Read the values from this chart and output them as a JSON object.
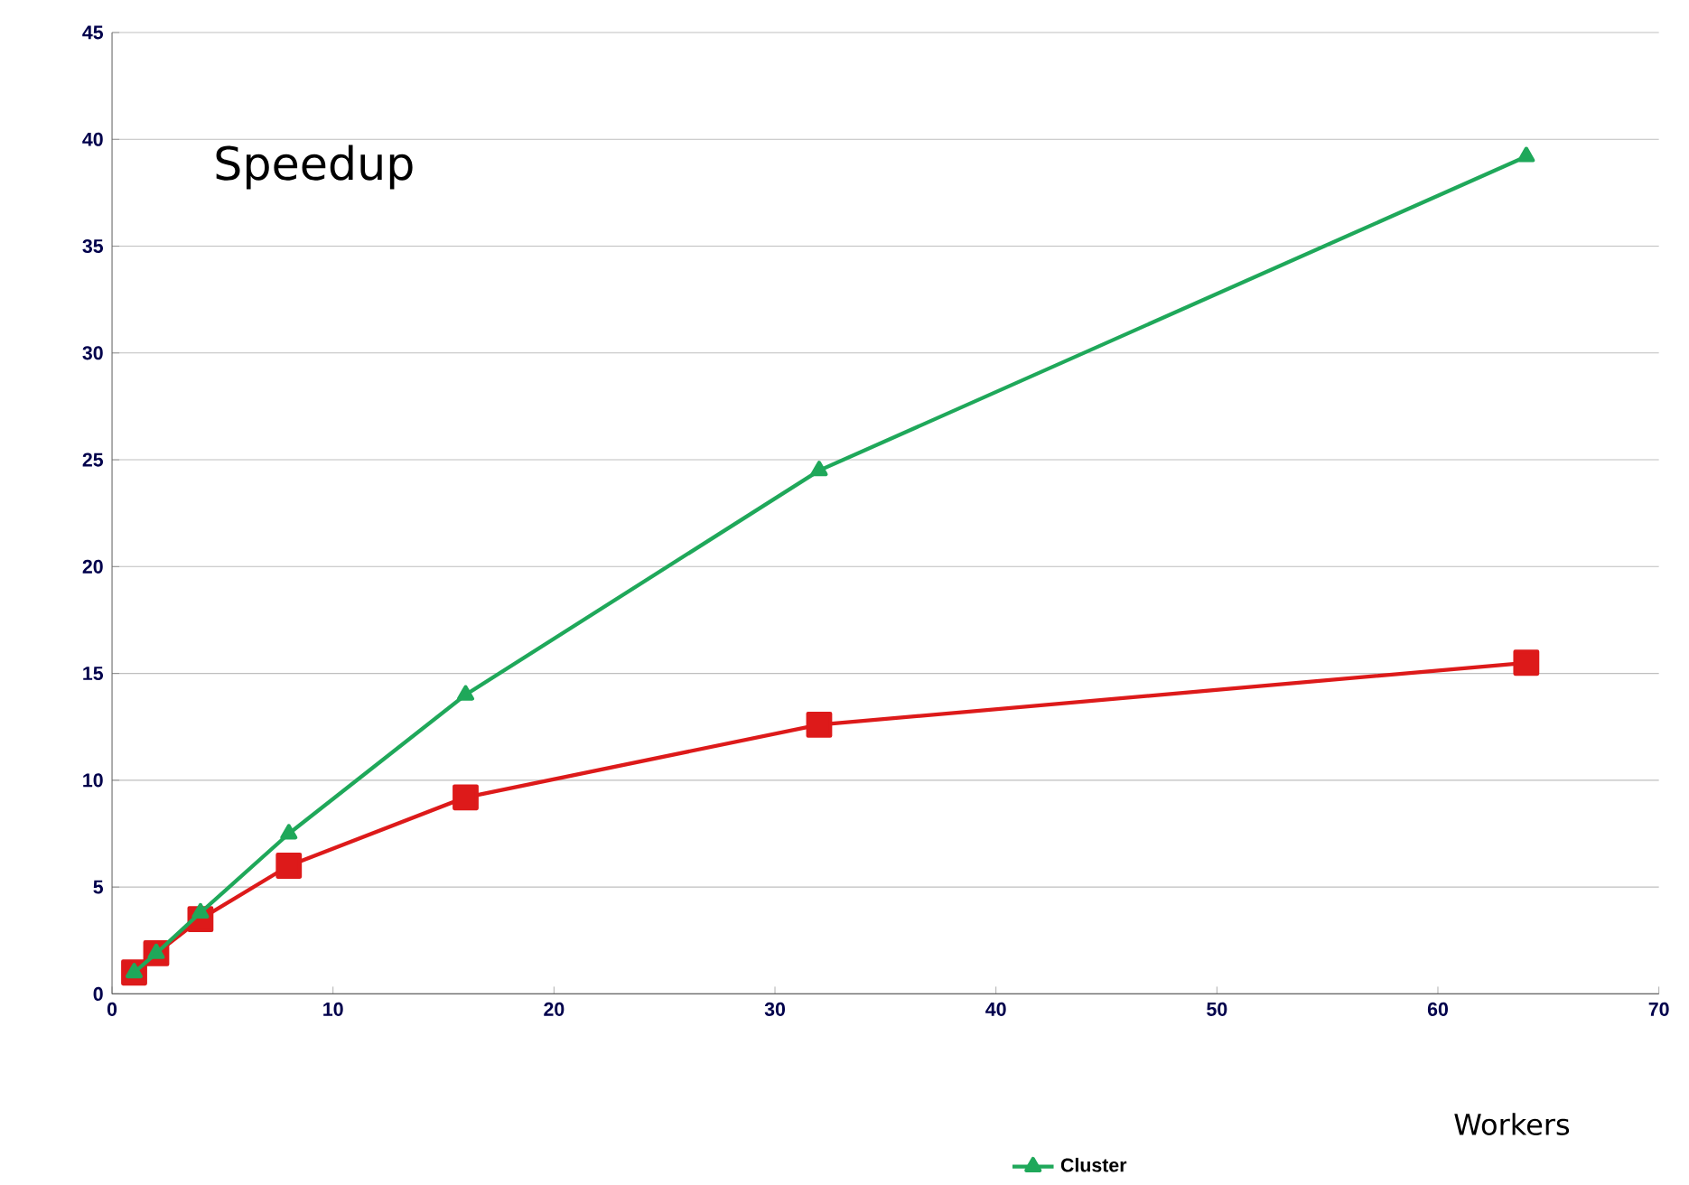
{
  "chart_data": {
    "type": "line",
    "title": "Speedup",
    "xlabel": "Workers",
    "x": [
      1,
      2,
      4,
      8,
      16,
      32,
      64
    ],
    "series": [
      {
        "color": "#dd1a1a",
        "marker": "square",
        "values": [
          1,
          1.9,
          3.5,
          6,
          9.2,
          12.6,
          15.5
        ]
      },
      {
        "name": "Cluster",
        "color": "#1fa85a",
        "marker": "triangle",
        "values": [
          1,
          1.9,
          3.8,
          7.5,
          14,
          24.5,
          39.2
        ]
      }
    ],
    "xlim": [
      0,
      70
    ],
    "ylim": [
      0,
      45
    ],
    "xticks": [
      0,
      10,
      20,
      30,
      40,
      50,
      60,
      70
    ],
    "yticks": [
      0,
      5,
      10,
      15,
      20,
      25,
      30,
      35,
      40,
      45
    ],
    "grid": "y",
    "legend": "bottom",
    "line_style": "solid"
  }
}
